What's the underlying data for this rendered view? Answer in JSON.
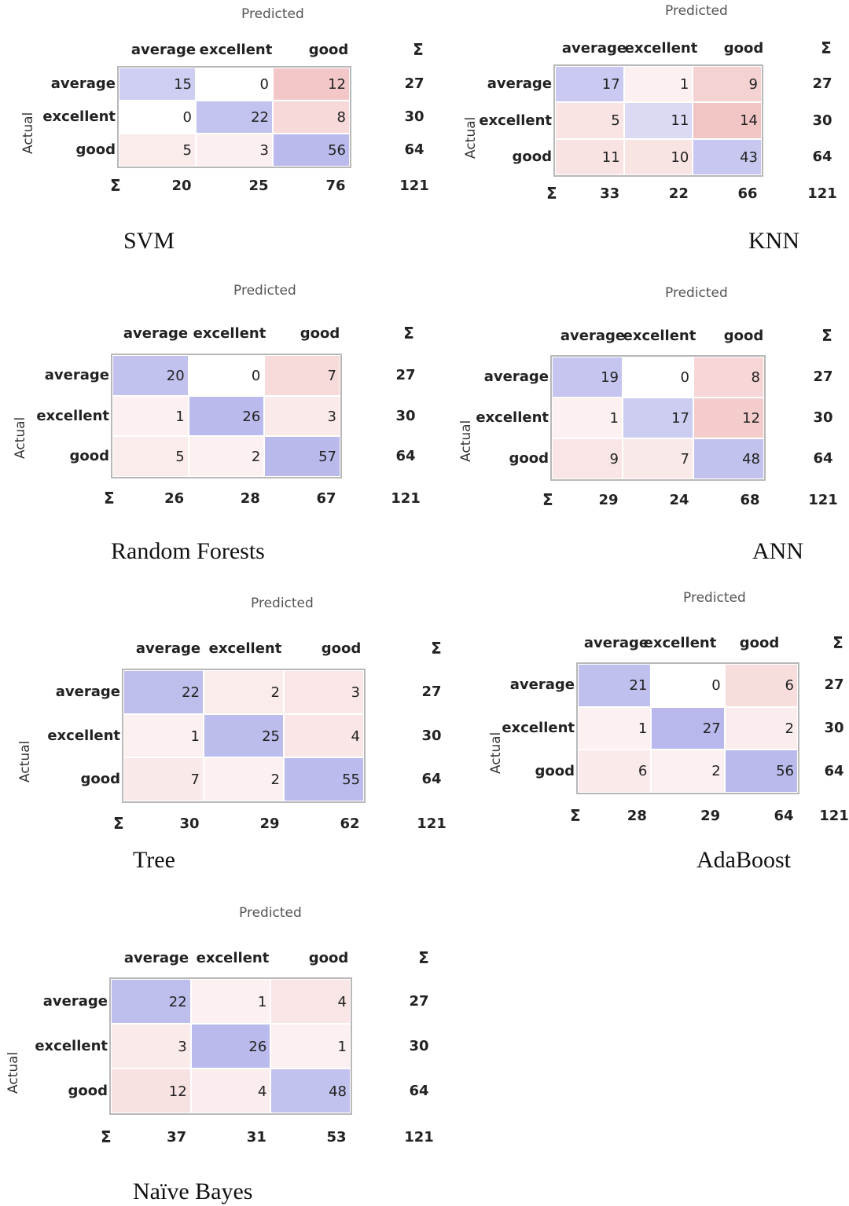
{
  "labels": {
    "predicted": "Predicted",
    "actual": "Actual",
    "sigma": "Σ",
    "classes": [
      "average",
      "excellent",
      "good"
    ]
  },
  "colors": {
    "diagonal": "#8c8ce0",
    "offdiagonal": "#e07070",
    "border": "#b8b8b8"
  },
  "chart_data": [
    {
      "type": "heatmap",
      "title": "SVM",
      "x_categories": [
        "average",
        "excellent",
        "good"
      ],
      "y_categories": [
        "average",
        "excellent",
        "good"
      ],
      "xlabel": "Predicted",
      "ylabel": "Actual",
      "matrix": [
        [
          15,
          0,
          12
        ],
        [
          0,
          22,
          8
        ],
        [
          5,
          3,
          56
        ]
      ],
      "row_sums": [
        27,
        30,
        64
      ],
      "col_sums": [
        20,
        25,
        76
      ],
      "total": 121
    },
    {
      "type": "heatmap",
      "title": "KNN",
      "x_categories": [
        "average",
        "excellent",
        "good"
      ],
      "y_categories": [
        "average",
        "excellent",
        "good"
      ],
      "xlabel": "Predicted",
      "ylabel": "Actual",
      "matrix": [
        [
          17,
          1,
          9
        ],
        [
          5,
          11,
          14
        ],
        [
          11,
          10,
          43
        ]
      ],
      "row_sums": [
        27,
        30,
        64
      ],
      "col_sums": [
        33,
        22,
        66
      ],
      "total": 121
    },
    {
      "type": "heatmap",
      "title": "Random Forests",
      "x_categories": [
        "average",
        "excellent",
        "good"
      ],
      "y_categories": [
        "average",
        "excellent",
        "good"
      ],
      "xlabel": "Predicted",
      "ylabel": "Actual",
      "matrix": [
        [
          20,
          0,
          7
        ],
        [
          1,
          26,
          3
        ],
        [
          5,
          2,
          57
        ]
      ],
      "row_sums": [
        27,
        30,
        64
      ],
      "col_sums": [
        26,
        28,
        67
      ],
      "total": 121
    },
    {
      "type": "heatmap",
      "title": "ANN",
      "x_categories": [
        "average",
        "excellent",
        "good"
      ],
      "y_categories": [
        "average",
        "excellent",
        "good"
      ],
      "xlabel": "Predicted",
      "ylabel": "Actual",
      "matrix": [
        [
          19,
          0,
          8
        ],
        [
          1,
          17,
          12
        ],
        [
          9,
          7,
          48
        ]
      ],
      "row_sums": [
        27,
        30,
        64
      ],
      "col_sums": [
        29,
        24,
        68
      ],
      "total": 121
    },
    {
      "type": "heatmap",
      "title": "Tree",
      "x_categories": [
        "average",
        "excellent",
        "good"
      ],
      "y_categories": [
        "average",
        "excellent",
        "good"
      ],
      "xlabel": "Predicted",
      "ylabel": "Actual",
      "matrix": [
        [
          22,
          2,
          3
        ],
        [
          1,
          25,
          4
        ],
        [
          7,
          2,
          55
        ]
      ],
      "row_sums": [
        27,
        30,
        64
      ],
      "col_sums": [
        30,
        29,
        62
      ],
      "total": 121
    },
    {
      "type": "heatmap",
      "title": "AdaBoost",
      "x_categories": [
        "average",
        "excellent",
        "good"
      ],
      "y_categories": [
        "average",
        "excellent",
        "good"
      ],
      "xlabel": "Predicted",
      "ylabel": "Actual",
      "matrix": [
        [
          21,
          0,
          6
        ],
        [
          1,
          27,
          2
        ],
        [
          6,
          2,
          56
        ]
      ],
      "row_sums": [
        27,
        30,
        64
      ],
      "col_sums": [
        28,
        29,
        64
      ],
      "total": 121
    },
    {
      "type": "heatmap",
      "title": "Naïve Bayes",
      "x_categories": [
        "average",
        "excellent",
        "good"
      ],
      "y_categories": [
        "average",
        "excellent",
        "good"
      ],
      "xlabel": "Predicted",
      "ylabel": "Actual",
      "matrix": [
        [
          22,
          1,
          4
        ],
        [
          3,
          26,
          1
        ],
        [
          12,
          4,
          48
        ]
      ],
      "row_sums": [
        27,
        30,
        64
      ],
      "col_sums": [
        37,
        31,
        53
      ],
      "total": 121
    }
  ]
}
